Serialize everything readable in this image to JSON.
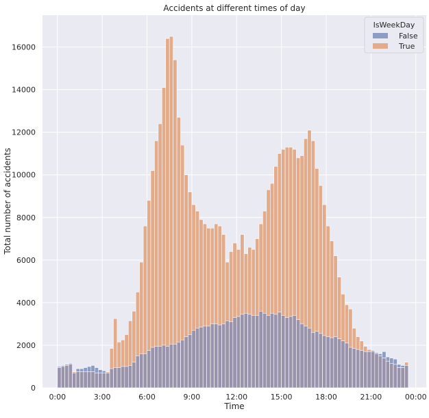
{
  "colors": {
    "plot_bg": "#eaeaf2",
    "grid": "#ffffff",
    "false_fill": "#8c9cc4",
    "true_fill": "#e2ab8b",
    "overlap_fill": "#9993ac",
    "text": "#262626"
  },
  "chart_data": {
    "type": "bar",
    "title": "Accidents at different times of day",
    "xlabel": "Time",
    "ylabel": "Total number of accidents",
    "xlim": [
      -1.0,
      24.7
    ],
    "ylim": [
      0,
      17500
    ],
    "bin_width_hours": 0.25,
    "grid": true,
    "x_ticks": [
      {
        "value": 0,
        "label": "0:00"
      },
      {
        "value": 3,
        "label": "3:00"
      },
      {
        "value": 6,
        "label": "6:00"
      },
      {
        "value": 9,
        "label": "9:00"
      },
      {
        "value": 12,
        "label": "12:00"
      },
      {
        "value": 15,
        "label": "15:00"
      },
      {
        "value": 18,
        "label": "18:00"
      },
      {
        "value": 21,
        "label": "21:00"
      },
      {
        "value": 24,
        "label": "00:00"
      }
    ],
    "y_ticks": [
      {
        "value": 0,
        "label": "0"
      },
      {
        "value": 2000,
        "label": "2000"
      },
      {
        "value": 4000,
        "label": "4000"
      },
      {
        "value": 6000,
        "label": "6000"
      },
      {
        "value": 8000,
        "label": "8000"
      },
      {
        "value": 10000,
        "label": "10000"
      },
      {
        "value": 12000,
        "label": "12000"
      },
      {
        "value": 14000,
        "label": "14000"
      },
      {
        "value": 16000,
        "label": "16000"
      }
    ],
    "legend": {
      "title": "IsWeekDay",
      "position": "top-right",
      "entries": [
        {
          "label": "False",
          "color": "#8c9cc4"
        },
        {
          "label": "True",
          "color": "#e2ab8b"
        }
      ]
    },
    "series": [
      {
        "name": "False",
        "x_start": 0,
        "values": [
          1000,
          1050,
          1100,
          1150,
          700,
          900,
          900,
          950,
          1000,
          1050,
          950,
          850,
          800,
          700,
          900,
          950,
          950,
          1000,
          1000,
          1050,
          1200,
          1500,
          1600,
          1600,
          1750,
          1900,
          1950,
          1950,
          2000,
          1950,
          2050,
          2050,
          2150,
          2250,
          2400,
          2500,
          2700,
          2800,
          2850,
          2900,
          2900,
          3000,
          3000,
          2950,
          3000,
          3150,
          3100,
          3300,
          3350,
          3450,
          3500,
          3450,
          3400,
          3400,
          3600,
          3500,
          3400,
          3500,
          3450,
          3550,
          3400,
          3300,
          3350,
          3400,
          3200,
          3000,
          2900,
          2800,
          2600,
          2650,
          2550,
          2450,
          2400,
          2350,
          2400,
          2300,
          2200,
          2100,
          1900,
          1850,
          1800,
          1750,
          1700,
          1700,
          1750,
          1650,
          1600,
          1700,
          1450,
          1400,
          1350,
          1100,
          1050,
          1050
        ],
        "overlap_until_index": 3
      },
      {
        "name": "True",
        "x_start": 0,
        "values": [
          950,
          1000,
          1050,
          1100,
          750,
          750,
          750,
          750,
          750,
          750,
          700,
          700,
          700,
          750,
          1850,
          3250,
          2150,
          2250,
          2500,
          3150,
          3600,
          4500,
          5900,
          7600,
          8800,
          10200,
          11600,
          12400,
          14100,
          16400,
          16500,
          15400,
          12700,
          11400,
          10000,
          9200,
          8600,
          8300,
          7900,
          7700,
          7500,
          7500,
          7700,
          7600,
          7200,
          5900,
          6400,
          6800,
          6500,
          7200,
          6300,
          6600,
          6500,
          7000,
          7700,
          8300,
          9300,
          9600,
          10400,
          11000,
          11200,
          11300,
          11300,
          11200,
          10800,
          10900,
          11700,
          12100,
          11600,
          10300,
          9500,
          8600,
          7600,
          6900,
          6200,
          5200,
          4400,
          3900,
          3700,
          2800,
          2400,
          2200,
          1950,
          1800,
          1700,
          1600,
          1500,
          1400,
          1250,
          1150,
          1100,
          950,
          950,
          1200
        ]
      }
    ]
  }
}
